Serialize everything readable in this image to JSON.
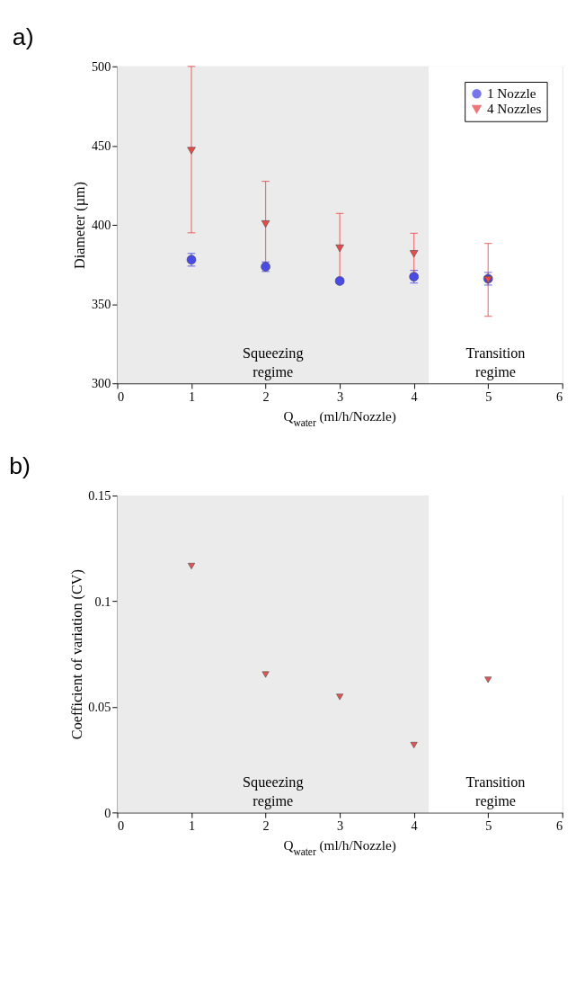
{
  "chart_data": [
    {
      "type": "scatter",
      "title": "a)",
      "xlabel": "Q$_{water}$ (ml/h/Nozzle)",
      "ylabel": "Diameter (µm)",
      "x": [
        1,
        2,
        3,
        4,
        5
      ],
      "series": [
        {
          "name": "1 Nozzle",
          "color": "#4a4ae6",
          "marker": "circle",
          "values": [
            378,
            373.6,
            364.6,
            367.3,
            366
          ],
          "errors": [
            4,
            3,
            1.5,
            4,
            4
          ]
        },
        {
          "name": "4 Nozzles",
          "color": "#e84a4a",
          "marker": "triangle",
          "values": [
            446.8,
            400.5,
            385.2,
            381.7,
            365.3
          ],
          "errors": [
            [
              395,
              500
            ],
            27,
            22,
            13,
            23
          ]
        }
      ],
      "xlim": [
        0,
        6
      ],
      "xticks": [
        0,
        1,
        2,
        3,
        4,
        5,
        6
      ],
      "ylim": [
        300,
        500
      ],
      "yticks": [
        300,
        350,
        400,
        450,
        500
      ],
      "bands": [
        {
          "axis": "x",
          "from": 0,
          "to": 4.2,
          "label": "Squeezing regime",
          "color": "#ebebeb"
        },
        {
          "axis": "x",
          "from": 4.2,
          "to": 6,
          "label": "Transition regime",
          "color": "#ffffff"
        }
      ],
      "legend": "top right",
      "grid": false
    },
    {
      "type": "scatter",
      "title": "b)",
      "xlabel": "Q$_{water}$ (ml/h/Nozzle)",
      "ylabel": "Coefficient of  variation (CV)",
      "x": [
        1,
        2,
        3,
        4,
        5
      ],
      "series": [
        {
          "color": "#e05555",
          "marker": "triangle",
          "values": [
            0.1166,
            0.0653,
            0.0547,
            0.0319,
            0.0628
          ]
        }
      ],
      "xlim": [
        0,
        6
      ],
      "xticks": [
        0,
        1,
        2,
        3,
        4,
        5,
        6
      ],
      "ylim": [
        0,
        0.15
      ],
      "yticks": [
        0,
        0.05,
        0.1,
        0.15
      ],
      "bands": [
        {
          "axis": "x",
          "from": 0,
          "to": 4.2,
          "label": "Squeezing regime",
          "color": "#ebebeb"
        },
        {
          "axis": "x",
          "from": 4.2,
          "to": 6,
          "label": "Transition regime",
          "color": "#ffffff"
        }
      ],
      "legend": false,
      "grid": false
    }
  ]
}
